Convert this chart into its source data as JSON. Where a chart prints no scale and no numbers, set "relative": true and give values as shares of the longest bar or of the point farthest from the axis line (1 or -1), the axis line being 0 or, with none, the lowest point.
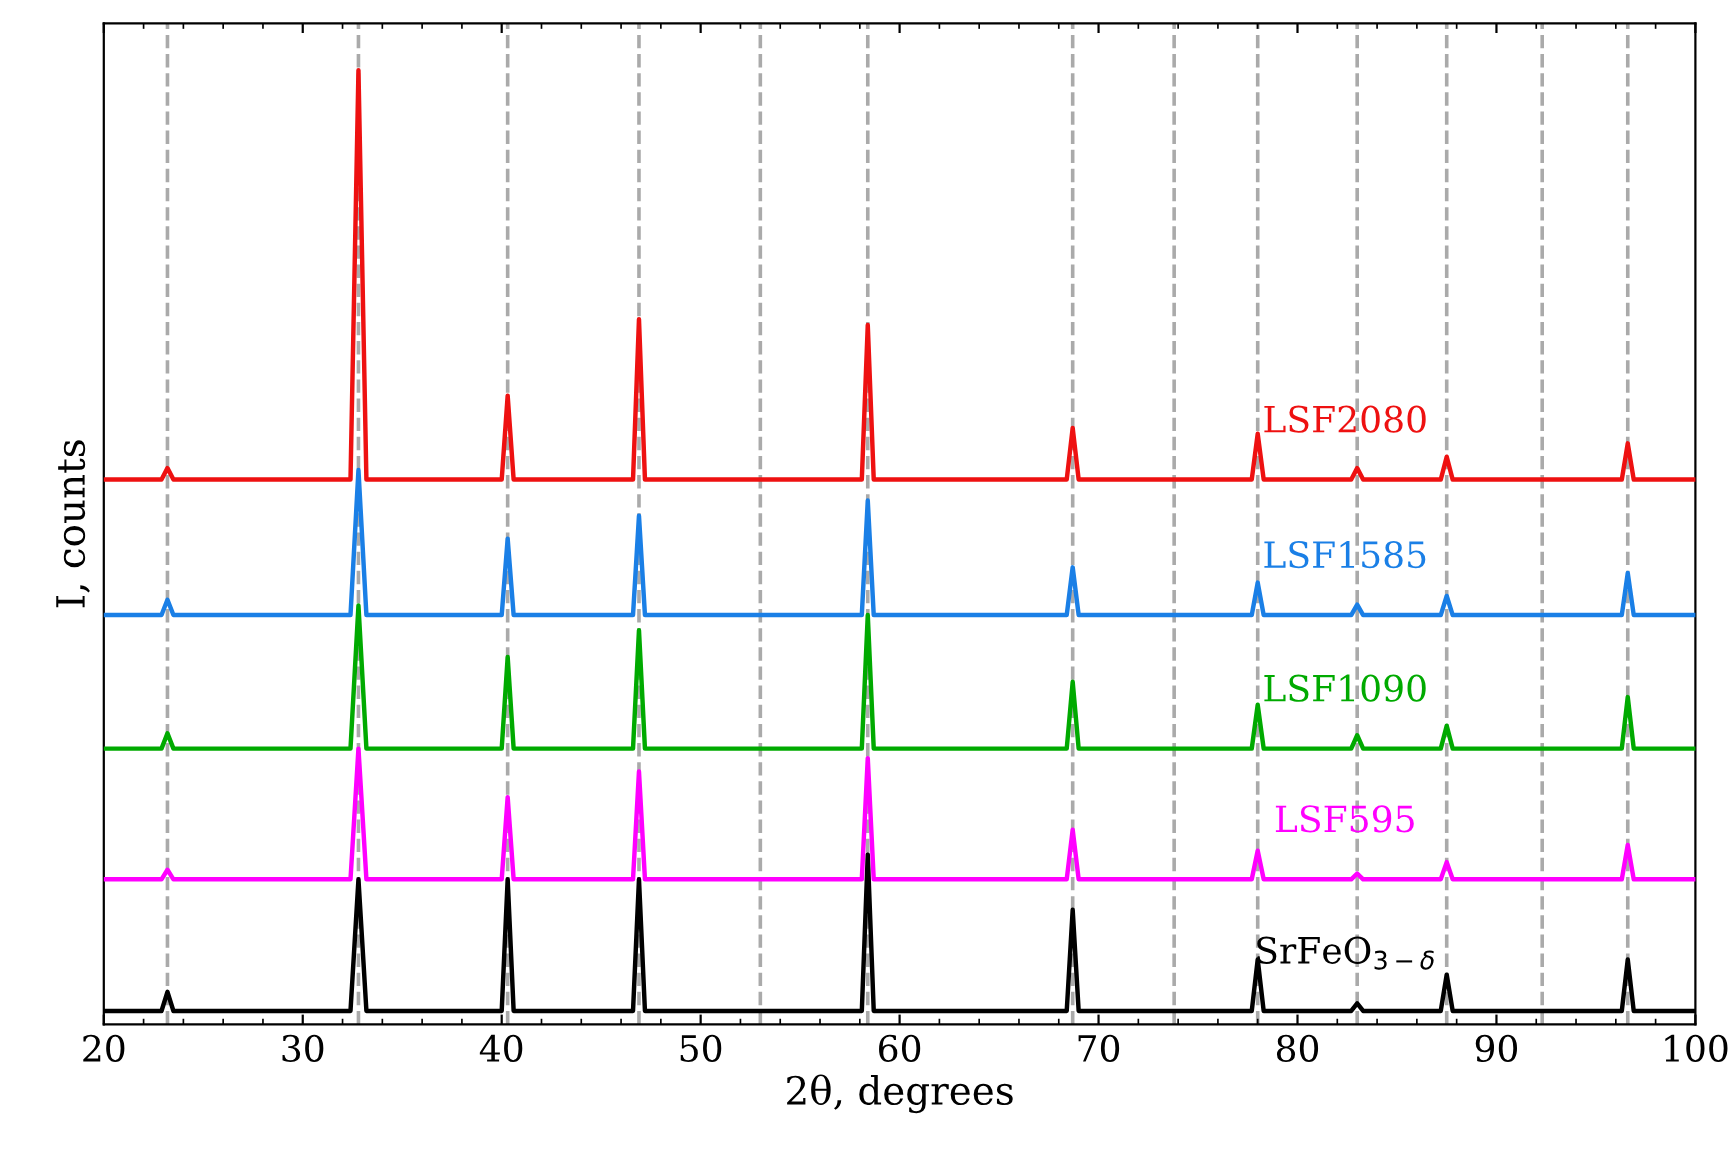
{
  "chart_data": {
    "type": "line",
    "relative": true,
    "tick_labels": "x",
    "grid": false,
    "legend": false,
    "marker": "none",
    "line_style": "solid",
    "xlabel": "2θ, degrees",
    "ylabel": "I, counts",
    "xlim": [
      20,
      100
    ],
    "xticks": [
      20,
      30,
      40,
      50,
      60,
      70,
      80,
      90,
      100
    ],
    "x": [
      20,
      22.9,
      23.2,
      23.5,
      32.4,
      32.8,
      33.2,
      40.0,
      40.3,
      40.6,
      46.6,
      46.9,
      47.2,
      58.1,
      58.4,
      58.7,
      68.4,
      68.7,
      69.0,
      77.7,
      78.0,
      78.3,
      82.7,
      83.0,
      83.3,
      87.2,
      87.5,
      87.8,
      96.3,
      96.6,
      96.9,
      100
    ],
    "series": [
      {
        "name": "SrFeO$_{3−δ}$",
        "color": "#000000",
        "values": [
          0.014,
          0.014,
          0.034,
          0.014,
          0.014,
          0.152,
          0.014,
          0.014,
          0.152,
          0.014,
          0.014,
          0.152,
          0.014,
          0.014,
          0.178,
          0.014,
          0.014,
          0.12,
          0.014,
          0.014,
          0.068,
          0.014,
          0.014,
          0.022,
          0.014,
          0.014,
          0.052,
          0.014,
          0.014,
          0.068,
          0.014,
          0.014
        ]
      },
      {
        "name": "LSF595",
        "color": "#ff00ff",
        "values": [
          0.152,
          0.152,
          0.162,
          0.152,
          0.152,
          0.289,
          0.152,
          0.152,
          0.238,
          0.152,
          0.152,
          0.265,
          0.152,
          0.152,
          0.279,
          0.152,
          0.152,
          0.204,
          0.152,
          0.152,
          0.182,
          0.152,
          0.152,
          0.158,
          0.152,
          0.152,
          0.17,
          0.152,
          0.152,
          0.188,
          0.152,
          0.152
        ]
      },
      {
        "name": "LSF1090",
        "color": "#00aa00",
        "values": [
          0.289,
          0.289,
          0.305,
          0.289,
          0.289,
          0.439,
          0.289,
          0.289,
          0.385,
          0.289,
          0.289,
          0.413,
          0.289,
          0.289,
          0.429,
          0.289,
          0.289,
          0.359,
          0.289,
          0.289,
          0.335,
          0.289,
          0.289,
          0.303,
          0.289,
          0.289,
          0.313,
          0.289,
          0.289,
          0.343,
          0.289,
          0.289
        ]
      },
      {
        "name": "LSF1585",
        "color": "#1a7fe6",
        "values": [
          0.429,
          0.429,
          0.445,
          0.429,
          0.429,
          0.581,
          0.429,
          0.429,
          0.509,
          0.429,
          0.429,
          0.533,
          0.429,
          0.429,
          0.549,
          0.429,
          0.429,
          0.479,
          0.429,
          0.429,
          0.463,
          0.429,
          0.429,
          0.44,
          0.429,
          0.429,
          0.449,
          0.429,
          0.429,
          0.473,
          0.429,
          0.429
        ]
      },
      {
        "name": "LSF2080",
        "color": "#ee1111",
        "values": [
          0.571,
          0.571,
          0.583,
          0.571,
          0.571,
          1.0,
          0.571,
          0.571,
          0.659,
          0.571,
          0.571,
          0.739,
          0.571,
          0.571,
          0.733,
          0.571,
          0.571,
          0.625,
          0.571,
          0.571,
          0.619,
          0.571,
          0.571,
          0.583,
          0.571,
          0.571,
          0.595,
          0.571,
          0.571,
          0.609,
          0.571,
          0.571
        ]
      }
    ],
    "ref_lines": [
      {
        "axis": "x",
        "value": 23.2,
        "color": "#aaaaaa",
        "line_style": "dashed"
      },
      {
        "axis": "x",
        "value": 32.8,
        "color": "#aaaaaa",
        "line_style": "dashed"
      },
      {
        "axis": "x",
        "value": 40.3,
        "color": "#aaaaaa",
        "line_style": "dashed"
      },
      {
        "axis": "x",
        "value": 46.9,
        "color": "#aaaaaa",
        "line_style": "dashed"
      },
      {
        "axis": "x",
        "value": 53.0,
        "color": "#aaaaaa",
        "line_style": "dashed"
      },
      {
        "axis": "x",
        "value": 58.4,
        "color": "#aaaaaa",
        "line_style": "dashed"
      },
      {
        "axis": "x",
        "value": 68.7,
        "color": "#aaaaaa",
        "line_style": "dashed"
      },
      {
        "axis": "x",
        "value": 73.8,
        "color": "#aaaaaa",
        "line_style": "dashed"
      },
      {
        "axis": "x",
        "value": 78.0,
        "color": "#aaaaaa",
        "line_style": "dashed"
      },
      {
        "axis": "x",
        "value": 83.0,
        "color": "#aaaaaa",
        "line_style": "dashed"
      },
      {
        "axis": "x",
        "value": 87.5,
        "color": "#aaaaaa",
        "line_style": "dashed"
      },
      {
        "axis": "x",
        "value": 92.3,
        "color": "#aaaaaa",
        "line_style": "dashed"
      },
      {
        "axis": "x",
        "value": 96.6,
        "color": "#aaaaaa",
        "line_style": "dashed"
      }
    ]
  }
}
